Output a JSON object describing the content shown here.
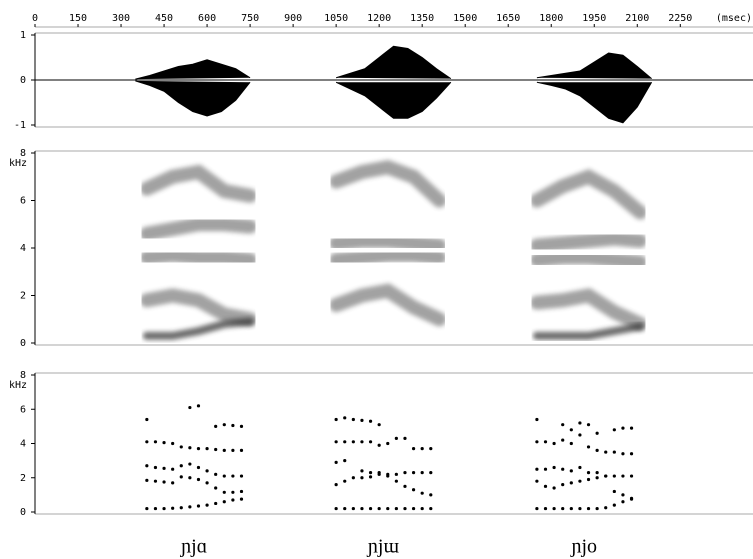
{
  "chart_data": [
    {
      "type": "waveform",
      "xlim": [
        0,
        2500
      ],
      "xticks": [
        0,
        150,
        300,
        450,
        600,
        750,
        900,
        1050,
        1200,
        1350,
        1500,
        1650,
        1800,
        1950,
        2100,
        2250
      ],
      "xlabel": "(msec)",
      "ylim": [
        -1,
        1
      ],
      "yticks": [
        1,
        0,
        -1
      ],
      "color": "#000000",
      "tokens": [
        {
          "x": [
            350,
            400,
            450,
            500,
            550,
            600,
            650,
            700,
            750
          ],
          "upper": [
            0.02,
            0.1,
            0.2,
            0.3,
            0.35,
            0.45,
            0.35,
            0.25,
            0.05
          ],
          "lower": [
            -0.02,
            -0.12,
            -0.25,
            -0.5,
            -0.7,
            -0.8,
            -0.7,
            -0.45,
            -0.05
          ]
        },
        {
          "x": [
            1050,
            1100,
            1150,
            1200,
            1250,
            1300,
            1350,
            1400,
            1450
          ],
          "upper": [
            0.05,
            0.15,
            0.25,
            0.5,
            0.75,
            0.7,
            0.5,
            0.25,
            0.03
          ],
          "lower": [
            -0.05,
            -0.2,
            -0.35,
            -0.6,
            -0.85,
            -0.85,
            -0.7,
            -0.4,
            -0.05
          ]
        },
        {
          "x": [
            1750,
            1800,
            1850,
            1900,
            1950,
            2000,
            2050,
            2100,
            2150
          ],
          "upper": [
            0.05,
            0.1,
            0.15,
            0.2,
            0.4,
            0.6,
            0.55,
            0.3,
            0.03
          ],
          "lower": [
            -0.05,
            -0.12,
            -0.2,
            -0.35,
            -0.6,
            -0.85,
            -0.95,
            -0.6,
            -0.05
          ]
        }
      ]
    },
    {
      "type": "spectrogram",
      "xlim": [
        0,
        2500
      ],
      "ylim": [
        0,
        8
      ],
      "yticks": [
        0,
        2,
        4,
        6,
        8
      ],
      "ylabel": "kHz",
      "color": "#333333",
      "tokens": [
        {
          "x": [
            390,
            480,
            570,
            660,
            750
          ],
          "bands": [
            [
              0.3,
              0.3,
              0.5,
              0.8,
              0.9
            ],
            [
              1.8,
              2.0,
              1.8,
              1.2,
              1.0
            ],
            [
              3.6,
              3.7,
              3.6,
              3.6,
              3.5
            ],
            [
              4.6,
              4.8,
              5.0,
              5.0,
              4.9
            ],
            [
              6.5,
              7.0,
              7.2,
              6.4,
              6.2
            ]
          ]
        },
        {
          "x": [
            1050,
            1140,
            1230,
            1320,
            1410
          ],
          "bands": [
            [
              0.3,
              0.3,
              0.3,
              0.3,
              0.3
            ],
            [
              1.6,
              2.0,
              2.2,
              1.5,
              1.0
            ],
            [
              3.5,
              3.6,
              3.7,
              3.7,
              3.6
            ],
            [
              4.2,
              4.3,
              4.3,
              4.2,
              4.1
            ],
            [
              6.8,
              7.2,
              7.4,
              7.0,
              6.0
            ]
          ]
        },
        {
          "x": [
            1750,
            1840,
            1930,
            2020,
            2110
          ],
          "bands": [
            [
              0.3,
              0.3,
              0.3,
              0.5,
              0.7
            ],
            [
              1.7,
              1.8,
              2.0,
              1.3,
              0.8
            ],
            [
              3.5,
              3.6,
              3.6,
              3.5,
              3.4
            ],
            [
              4.1,
              4.2,
              4.3,
              4.4,
              4.3
            ],
            [
              6.0,
              6.6,
              7.0,
              6.4,
              5.5
            ]
          ]
        }
      ]
    },
    {
      "type": "formant",
      "xlim": [
        0,
        2500
      ],
      "ylim": [
        0,
        8
      ],
      "yticks": [
        0,
        2,
        4,
        6,
        8
      ],
      "ylabel": "kHz",
      "color": "#000000",
      "tokens": [
        {
          "label": "ɲjɑ",
          "x": [
            390,
            420,
            450,
            480,
            510,
            540,
            570,
            600,
            630,
            660,
            690,
            720
          ],
          "formants": [
            [
              0.2,
              0.2,
              0.2,
              0.22,
              0.25,
              0.3,
              0.35,
              0.4,
              0.5,
              0.6,
              0.7,
              0.75
            ],
            [
              1.85,
              1.8,
              1.75,
              1.7,
              2.05,
              2.0,
              1.9,
              1.7,
              1.4,
              1.15,
              1.15,
              1.2
            ],
            [
              2.7,
              2.6,
              2.55,
              2.5,
              2.7,
              2.8,
              2.6,
              2.4,
              2.2,
              2.1,
              2.1,
              2.1
            ],
            [
              4.1,
              4.1,
              4.05,
              4.0,
              3.8,
              3.75,
              3.7,
              3.7,
              3.65,
              3.6,
              3.6,
              3.6
            ],
            [
              5.4,
              null,
              null,
              null,
              null,
              6.1,
              6.2,
              null,
              5.0,
              5.1,
              5.05,
              5.0
            ]
          ]
        },
        {
          "label": "ɲjɯ",
          "x": [
            1050,
            1080,
            1110,
            1140,
            1170,
            1200,
            1230,
            1260,
            1290,
            1320,
            1350,
            1380
          ],
          "formants": [
            [
              0.2,
              0.2,
              0.2,
              0.2,
              0.2,
              0.2,
              0.2,
              0.2,
              0.2,
              0.2,
              0.2,
              0.2
            ],
            [
              1.6,
              1.8,
              2.0,
              2.0,
              2.05,
              2.2,
              2.1,
              1.8,
              1.5,
              1.3,
              1.1,
              1.0
            ],
            [
              2.9,
              3.0,
              null,
              2.4,
              2.3,
              2.3,
              2.2,
              2.2,
              2.3,
              2.3,
              2.3,
              2.3
            ],
            [
              4.1,
              4.1,
              4.1,
              4.1,
              4.1,
              3.9,
              4.0,
              4.3,
              4.3,
              3.7,
              3.7,
              3.7
            ],
            [
              5.4,
              5.5,
              5.4,
              5.35,
              5.3,
              5.1,
              null,
              null,
              null,
              null,
              null,
              null
            ]
          ]
        },
        {
          "label": "ɲjo",
          "x": [
            1750,
            1780,
            1810,
            1840,
            1870,
            1900,
            1930,
            1960,
            1990,
            2020,
            2050,
            2080
          ],
          "formants": [
            [
              0.2,
              0.2,
              0.2,
              0.2,
              0.2,
              0.2,
              0.2,
              0.2,
              0.25,
              0.4,
              0.6,
              0.75
            ],
            [
              1.8,
              1.5,
              1.4,
              1.6,
              1.7,
              1.8,
              1.9,
              2.0,
              2.1,
              1.2,
              1.0,
              0.8
            ],
            [
              2.5,
              2.5,
              2.6,
              2.5,
              2.4,
              2.6,
              2.3,
              2.3,
              2.1,
              2.1,
              2.1,
              2.1
            ],
            [
              4.1,
              4.1,
              4.0,
              4.2,
              4.0,
              4.5,
              3.8,
              3.6,
              3.5,
              3.5,
              3.4,
              3.4
            ],
            [
              5.4,
              null,
              null,
              5.1,
              4.8,
              5.2,
              5.1,
              4.6,
              null,
              4.8,
              4.9,
              4.9
            ]
          ]
        }
      ]
    }
  ]
}
